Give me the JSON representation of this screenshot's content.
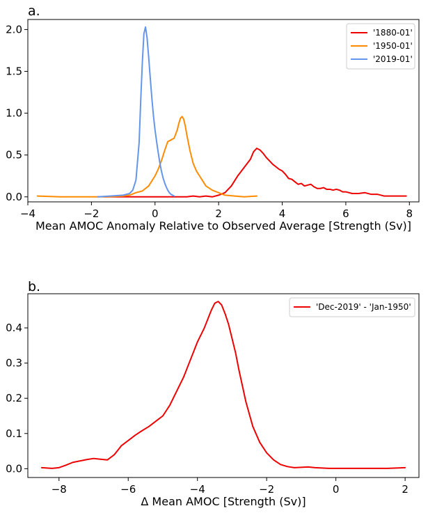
{
  "chart_data": [
    {
      "type": "line",
      "panel_label": "a.",
      "xlabel": "Mean AMOC Anomaly Relative to Observed Average [Strength (Sv)]",
      "ylabel": "",
      "xlim": [
        -4.0,
        8.3
      ],
      "ylim": [
        -0.06,
        2.12
      ],
      "xticks": [
        -4,
        -2,
        0,
        2,
        4,
        6,
        8
      ],
      "xtick_labels": [
        "−4",
        "−2",
        "0",
        "2",
        "4",
        "6",
        "8"
      ],
      "yticks": [
        0.0,
        0.5,
        1.0,
        1.5,
        2.0
      ],
      "ytick_labels": [
        "0.0",
        "0.5",
        "1.0",
        "1.5",
        "2.0"
      ],
      "grid": false,
      "legend_position": "top-right",
      "series": [
        {
          "name": "'1880-01'",
          "color": "#ee0000",
          "x": [
            -1.6,
            -1.0,
            -0.5,
            0.0,
            0.5,
            1.0,
            1.2,
            1.4,
            1.6,
            1.8,
            2.0,
            2.2,
            2.4,
            2.6,
            2.8,
            3.0,
            3.1,
            3.2,
            3.3,
            3.4,
            3.5,
            3.6,
            3.7,
            3.8,
            3.9,
            4.0,
            4.1,
            4.2,
            4.3,
            4.4,
            4.5,
            4.6,
            4.7,
            4.8,
            4.9,
            5.0,
            5.1,
            5.2,
            5.3,
            5.4,
            5.5,
            5.6,
            5.7,
            5.8,
            5.9,
            6.0,
            6.2,
            6.4,
            6.6,
            6.8,
            7.0,
            7.2,
            7.5,
            7.9
          ],
          "values": [
            0.0,
            0.0,
            0.0,
            0.0,
            0.0,
            0.0,
            0.01,
            0.0,
            0.01,
            0.0,
            0.02,
            0.05,
            0.13,
            0.25,
            0.35,
            0.45,
            0.54,
            0.58,
            0.56,
            0.52,
            0.47,
            0.43,
            0.39,
            0.36,
            0.33,
            0.31,
            0.27,
            0.22,
            0.21,
            0.18,
            0.15,
            0.16,
            0.13,
            0.14,
            0.15,
            0.12,
            0.1,
            0.1,
            0.11,
            0.09,
            0.09,
            0.08,
            0.09,
            0.08,
            0.06,
            0.06,
            0.04,
            0.04,
            0.05,
            0.03,
            0.03,
            0.01,
            0.01,
            0.01
          ]
        },
        {
          "name": "'1950-01'",
          "color": "#ff8c00",
          "x": [
            -3.7,
            -3.0,
            -2.0,
            -1.5,
            -1.0,
            -0.8,
            -0.6,
            -0.4,
            -0.2,
            0.0,
            0.1,
            0.2,
            0.3,
            0.4,
            0.5,
            0.6,
            0.7,
            0.75,
            0.8,
            0.85,
            0.9,
            0.95,
            1.0,
            1.1,
            1.2,
            1.3,
            1.4,
            1.5,
            1.6,
            1.8,
            2.0,
            2.2,
            2.5,
            2.8,
            3.2
          ],
          "values": [
            0.01,
            0.0,
            0.0,
            0.0,
            0.01,
            0.02,
            0.05,
            0.07,
            0.13,
            0.25,
            0.33,
            0.43,
            0.55,
            0.66,
            0.68,
            0.7,
            0.8,
            0.88,
            0.94,
            0.96,
            0.93,
            0.85,
            0.74,
            0.55,
            0.4,
            0.31,
            0.25,
            0.19,
            0.13,
            0.08,
            0.05,
            0.02,
            0.01,
            0.0,
            0.01
          ]
        },
        {
          "name": "'2019-01'",
          "color": "#6495ed",
          "x": [
            -1.8,
            -1.4,
            -1.0,
            -0.8,
            -0.7,
            -0.6,
            -0.5,
            -0.45,
            -0.4,
            -0.35,
            -0.3,
            -0.25,
            -0.2,
            -0.15,
            -0.1,
            -0.05,
            0.0,
            0.05,
            0.1,
            0.15,
            0.2,
            0.25,
            0.3,
            0.35,
            0.4,
            0.45,
            0.5,
            0.55,
            0.6
          ],
          "values": [
            0.0,
            0.01,
            0.02,
            0.04,
            0.08,
            0.2,
            0.65,
            1.15,
            1.6,
            1.95,
            2.03,
            1.9,
            1.67,
            1.42,
            1.18,
            0.97,
            0.8,
            0.66,
            0.53,
            0.41,
            0.31,
            0.23,
            0.17,
            0.12,
            0.08,
            0.05,
            0.03,
            0.02,
            0.01
          ]
        }
      ]
    },
    {
      "type": "line",
      "panel_label": "b.",
      "xlabel": "Δ Mean AMOC [Strength (Sv)]",
      "ylabel": "",
      "xlim": [
        -8.9,
        2.4
      ],
      "ylim": [
        -0.025,
        0.497
      ],
      "xticks": [
        -8,
        -6,
        -4,
        -2,
        0,
        2
      ],
      "xtick_labels": [
        "−8",
        "−6",
        "−4",
        "−2",
        "0",
        "2"
      ],
      "yticks": [
        0.0,
        0.1,
        0.2,
        0.3,
        0.4
      ],
      "ytick_labels": [
        "0.0",
        "0.1",
        "0.2",
        "0.3",
        "0.4"
      ],
      "grid": false,
      "legend_position": "top-right",
      "series": [
        {
          "name": "'Dec-2019' - 'Jan-1950'",
          "color": "#ee0000",
          "x": [
            -8.5,
            -8.2,
            -8.0,
            -7.8,
            -7.6,
            -7.4,
            -7.2,
            -7.0,
            -6.8,
            -6.6,
            -6.4,
            -6.2,
            -6.0,
            -5.8,
            -5.6,
            -5.4,
            -5.2,
            -5.0,
            -4.8,
            -4.6,
            -4.4,
            -4.2,
            -4.0,
            -3.8,
            -3.6,
            -3.5,
            -3.4,
            -3.3,
            -3.2,
            -3.1,
            -3.0,
            -2.9,
            -2.8,
            -2.6,
            -2.4,
            -2.2,
            -2.0,
            -1.8,
            -1.6,
            -1.4,
            -1.2,
            -1.0,
            -0.8,
            -0.6,
            -0.4,
            -0.2,
            0.0,
            0.5,
            1.0,
            1.5,
            2.0
          ],
          "values": [
            0.003,
            0.001,
            0.003,
            0.01,
            0.018,
            0.022,
            0.026,
            0.029,
            0.027,
            0.025,
            0.04,
            0.065,
            0.08,
            0.095,
            0.108,
            0.12,
            0.135,
            0.15,
            0.18,
            0.22,
            0.26,
            0.31,
            0.36,
            0.4,
            0.45,
            0.47,
            0.475,
            0.465,
            0.44,
            0.41,
            0.37,
            0.33,
            0.28,
            0.19,
            0.12,
            0.075,
            0.045,
            0.025,
            0.012,
            0.006,
            0.003,
            0.004,
            0.005,
            0.003,
            0.002,
            0.001,
            0.001,
            0.001,
            0.001,
            0.001,
            0.003
          ]
        }
      ]
    }
  ]
}
